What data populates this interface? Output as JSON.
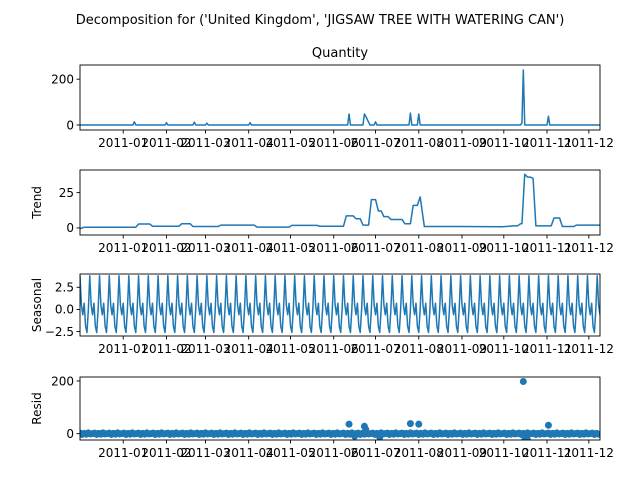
{
  "figure": {
    "suptitle": "Decomposition for ('United Kingdom', 'JIGSAW TREE WITH WATERING CAN')",
    "line_color": "#1f77b4"
  },
  "chart_data": [
    {
      "type": "line",
      "title": "Quantity",
      "ylabel": "",
      "ylim": [
        -22,
        262
      ],
      "yticks": [
        "0",
        "200"
      ],
      "ytick_values": [
        0,
        200
      ],
      "xticks": [
        "2011-01",
        "2011-02",
        "2011-03",
        "2011-04",
        "2011-05",
        "2011-06",
        "2011-07",
        "2011-08",
        "2011-09",
        "2011-10",
        "2011-11",
        "2011-12"
      ],
      "xlim": [
        "2010-12-01",
        "2011-12-09"
      ],
      "series": [
        {
          "x": [
            "2010-12-01",
            "2011-01-08",
            "2011-01-09",
            "2011-01-10",
            "2011-01-31",
            "2011-02-01",
            "2011-02-02",
            "2011-02-20",
            "2011-02-21",
            "2011-02-22",
            "2011-03-01",
            "2011-03-02",
            "2011-03-03",
            "2011-04-01",
            "2011-04-02",
            "2011-04-03",
            "2011-06-11",
            "2011-06-12",
            "2011-06-13",
            "2011-06-22",
            "2011-06-23",
            "2011-06-24",
            "2011-06-26",
            "2011-06-27",
            "2011-06-30",
            "2011-07-01",
            "2011-07-02",
            "2011-07-25",
            "2011-07-26",
            "2011-07-27",
            "2011-07-31",
            "2011-08-01",
            "2011-08-02",
            "2011-10-13",
            "2011-10-14",
            "2011-10-15",
            "2011-10-16",
            "2011-10-17",
            "2011-11-01",
            "2011-11-02",
            "2011-11-03",
            "2011-12-09"
          ],
          "values": [
            0,
            0,
            14,
            0,
            0,
            10,
            0,
            0,
            12,
            0,
            0,
            8,
            0,
            0,
            10,
            0,
            0,
            48,
            0,
            0,
            48,
            38,
            12,
            0,
            0,
            14,
            0,
            0,
            52,
            0,
            0,
            48,
            0,
            0,
            8,
            240,
            0,
            0,
            0,
            38,
            0,
            0
          ]
        }
      ]
    },
    {
      "type": "line",
      "title": "",
      "ylabel": "Trend",
      "ylim": [
        -5,
        41
      ],
      "yticks": [
        "0",
        "25"
      ],
      "ytick_values": [
        0,
        25
      ],
      "xticks": [
        "2011-01",
        "2011-02",
        "2011-03",
        "2011-04",
        "2011-05",
        "2011-06",
        "2011-07",
        "2011-08",
        "2011-09",
        "2011-10",
        "2011-11",
        "2011-12"
      ],
      "xlim": [
        "2010-12-01",
        "2011-12-09"
      ],
      "series": [
        {
          "x": [
            "2010-12-01",
            "2010-12-04",
            "2011-01-10",
            "2011-01-12",
            "2011-01-20",
            "2011-01-22",
            "2011-02-10",
            "2011-02-12",
            "2011-02-18",
            "2011-02-20",
            "2011-03-10",
            "2011-03-12",
            "2011-04-05",
            "2011-04-07",
            "2011-04-30",
            "2011-05-02",
            "2011-05-20",
            "2011-05-22",
            "2011-06-08",
            "2011-06-10",
            "2011-06-15",
            "2011-06-17",
            "2011-06-20",
            "2011-06-22",
            "2011-06-26",
            "2011-06-28",
            "2011-07-01",
            "2011-07-03",
            "2011-07-05",
            "2011-07-07",
            "2011-07-10",
            "2011-07-12",
            "2011-07-20",
            "2011-07-22",
            "2011-07-26",
            "2011-07-28",
            "2011-07-31",
            "2011-08-02",
            "2011-08-05",
            "2011-08-30",
            "2011-09-30",
            "2011-10-08",
            "2011-10-11",
            "2011-10-13",
            "2011-10-14",
            "2011-10-16",
            "2011-10-18",
            "2011-10-20",
            "2011-10-22",
            "2011-10-24",
            "2011-11-04",
            "2011-11-06",
            "2011-11-10",
            "2011-11-12",
            "2011-11-20",
            "2011-11-22",
            "2011-12-09"
          ],
          "values": [
            -0.5,
            0.5,
            0.5,
            2.8,
            2.8,
            1.2,
            1.2,
            3.0,
            3.0,
            1.0,
            1.0,
            2.0,
            2.0,
            0.6,
            0.6,
            1.8,
            1.8,
            1.2,
            1.2,
            8.5,
            8.5,
            6.5,
            6.5,
            2.0,
            2.0,
            20.0,
            20.0,
            12.0,
            12.0,
            8.0,
            8.0,
            6.0,
            6.0,
            3.0,
            3.0,
            16.0,
            16.0,
            22.0,
            1.0,
            1.0,
            0.8,
            1.5,
            1.5,
            3.0,
            3.0,
            38.0,
            36.0,
            36.0,
            35.0,
            1.5,
            1.5,
            7.0,
            7.0,
            1.0,
            1.0,
            2.0,
            2.0
          ]
        }
      ]
    },
    {
      "type": "line",
      "title": "",
      "ylabel": "Seasonal",
      "ylim": [
        -3.0,
        4.0
      ],
      "yticks": [
        "−2.5",
        "0.0",
        "2.5"
      ],
      "ytick_values": [
        -2.5,
        0,
        2.5
      ],
      "xticks": [
        "2011-01",
        "2011-02",
        "2011-03",
        "2011-04",
        "2011-05",
        "2011-06",
        "2011-07",
        "2011-08",
        "2011-09",
        "2011-10",
        "2011-11",
        "2011-12"
      ],
      "xlim": [
        "2010-12-01",
        "2011-12-09"
      ],
      "pattern": {
        "period_days": 7,
        "values": [
          3.8,
          0.5,
          -0.6,
          0.7,
          -1.9,
          -2.6,
          0.0
        ]
      },
      "series": [
        {
          "name": "",
          "values": []
        }
      ]
    },
    {
      "type": "scatter",
      "title": "",
      "ylabel": "Resid",
      "ylim": [
        -24,
        215
      ],
      "yticks": [
        "0",
        "200"
      ],
      "ytick_values": [
        0,
        200
      ],
      "xticks": [
        "2011-01",
        "2011-02",
        "2011-03",
        "2011-04",
        "2011-05",
        "2011-06",
        "2011-07",
        "2011-08",
        "2011-09",
        "2011-10",
        "2011-11",
        "2011-12"
      ],
      "xlim": [
        "2010-12-01",
        "2011-12-09"
      ],
      "series": [
        {
          "x": [
            "2011-06-12",
            "2011-06-23",
            "2011-06-24",
            "2011-07-26",
            "2011-08-01",
            "2011-10-15",
            "2011-10-16",
            "2011-10-17",
            "2011-10-18",
            "2011-11-02",
            "2011-06-16",
            "2011-07-04"
          ],
          "values": [
            36,
            28,
            16,
            38,
            36,
            198,
            -24,
            -24,
            -24,
            32,
            -10,
            -14
          ]
        }
      ]
    }
  ]
}
